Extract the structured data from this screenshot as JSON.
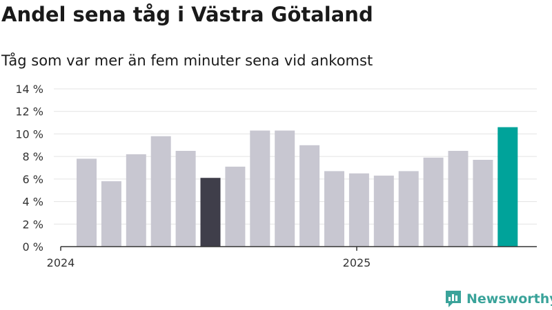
{
  "chart_data": {
    "type": "bar",
    "title": "Andel sena tåg i Västra Götaland",
    "subtitle": "Tåg som var mer än fem minuter sena vid ankomst",
    "values": [
      7.8,
      5.8,
      8.2,
      9.8,
      8.5,
      6.1,
      7.1,
      10.3,
      10.3,
      9.0,
      6.7,
      6.5,
      6.3,
      6.7,
      7.9,
      8.5,
      7.7,
      10.6
    ],
    "highlight": {
      "dark_index": 5,
      "accent_index": 17
    },
    "x_tick_labels": [
      {
        "label": "2024",
        "index": 0
      },
      {
        "label": "2025",
        "index": 12
      }
    ],
    "y_ticks": [
      "0 %",
      "2 %",
      "4 %",
      "6 %",
      "8 %",
      "10 %",
      "12 %",
      "14 %"
    ],
    "ylim": [
      0,
      14
    ],
    "grid": true,
    "colors": {
      "bar": "#c8c7d1",
      "highlight_dark": "#3f3e4a",
      "highlight_accent": "#00a39a",
      "grid": "#e3e3e3"
    }
  },
  "brand": {
    "name": "Newsworthy",
    "color": "#3aa39a"
  }
}
